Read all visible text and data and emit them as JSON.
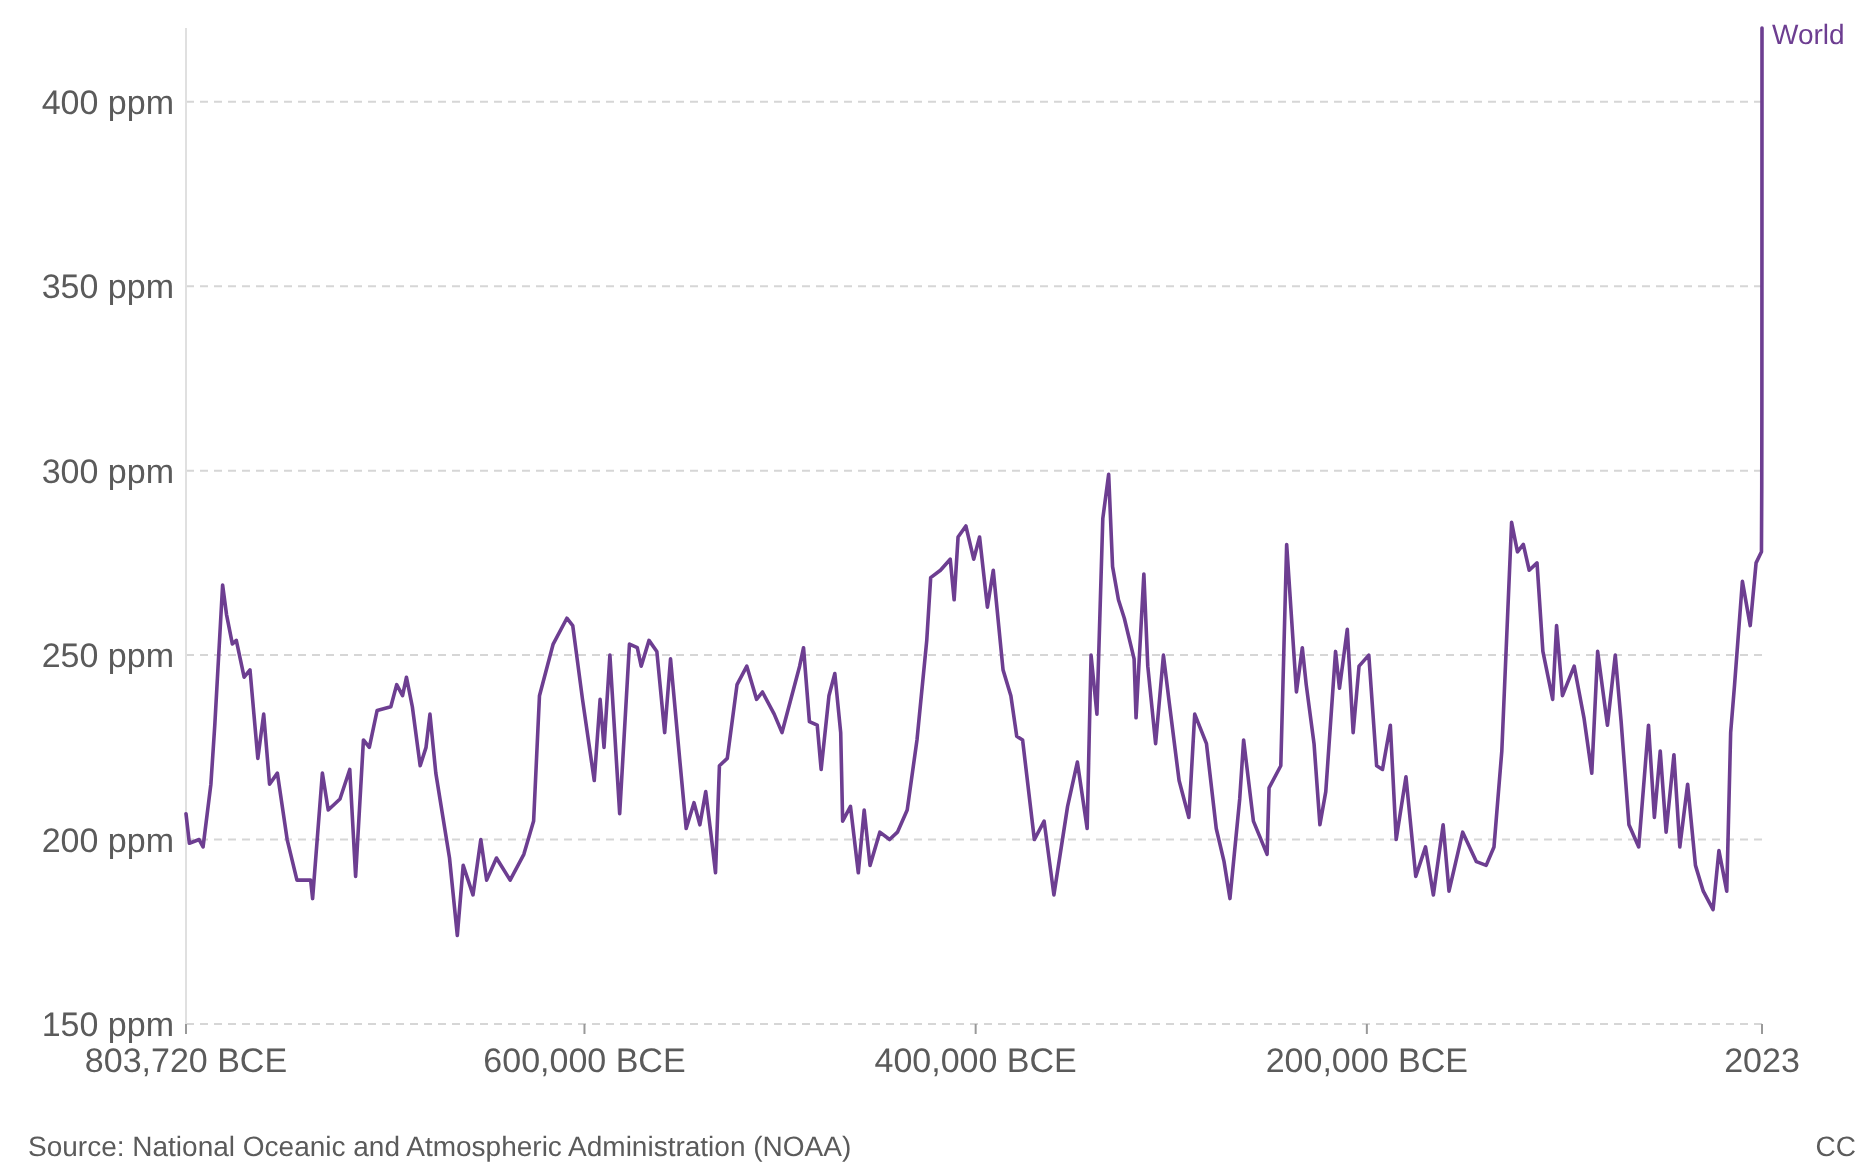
{
  "chart_data": {
    "type": "line",
    "xlim": [
      -803720,
      2023
    ],
    "ylim": [
      150,
      420
    ],
    "xticks": [
      {
        "value": -803720,
        "label": "803,720 BCE"
      },
      {
        "value": -600000,
        "label": "600,000 BCE"
      },
      {
        "value": -400000,
        "label": "400,000 BCE"
      },
      {
        "value": -200000,
        "label": "200,000 BCE"
      },
      {
        "value": 2023,
        "label": "2023"
      }
    ],
    "yticks": [
      {
        "value": 150,
        "label": "150 ppm"
      },
      {
        "value": 200,
        "label": "200 ppm"
      },
      {
        "value": 250,
        "label": "250 ppm"
      },
      {
        "value": 300,
        "label": "300 ppm"
      },
      {
        "value": 350,
        "label": "350 ppm"
      },
      {
        "value": 400,
        "label": "400 ppm"
      }
    ],
    "grid": "y",
    "line_style": "solid",
    "marker": "none",
    "annotations": [
      "Source: National Oceanic and Atmospheric Administration (NOAA)",
      "CC"
    ],
    "series": [
      {
        "name": "World",
        "color": "#6d3e91",
        "x": [
          -803720,
          -802000,
          -797000,
          -795000,
          -791000,
          -789000,
          -785000,
          -783000,
          -780000,
          -778000,
          -774000,
          -771000,
          -769000,
          -767000,
          -764000,
          -761000,
          -757000,
          -752000,
          -747000,
          -740000,
          -739000,
          -734000,
          -731000,
          -725000,
          -720000,
          -717000,
          -713000,
          -710000,
          -706000,
          -699000,
          -696000,
          -693000,
          -691000,
          -688000,
          -684000,
          -681000,
          -679000,
          -676000,
          -669000,
          -665000,
          -662000,
          -657000,
          -653000,
          -650000,
          -645000,
          -638000,
          -631000,
          -626000,
          -623000,
          -616000,
          -609000,
          -606000,
          -601000,
          -595000,
          -592000,
          -590000,
          -587000,
          -582000,
          -577000,
          -573000,
          -571000,
          -567000,
          -563000,
          -559000,
          -556000,
          -551000,
          -548000,
          -544000,
          -541000,
          -538000,
          -535000,
          -533000,
          -531000,
          -527000,
          -522000,
          -517000,
          -512000,
          -509000,
          -503000,
          -499000,
          -495000,
          -490000,
          -488000,
          -485000,
          -481000,
          -479000,
          -475000,
          -472000,
          -469000,
          -468000,
          -464000,
          -460000,
          -457000,
          -454000,
          -449000,
          -444000,
          -440000,
          -435000,
          -430000,
          -425000,
          -423000,
          -418000,
          -413000,
          -411000,
          -409000,
          -405000,
          -401000,
          -398000,
          -394000,
          -391000,
          -386000,
          -382000,
          -379000,
          -376000,
          -370000,
          -365000,
          -360000,
          -353000,
          -348000,
          -343000,
          -341000,
          -338000,
          -335000,
          -332000,
          -330000,
          -327000,
          -324000,
          -319000,
          -318000,
          -314000,
          -312000,
          -308000,
          -304000,
          -301000,
          -296000,
          -291000,
          -288000,
          -282000,
          -277000,
          -273000,
          -270000,
          -265000,
          -263000,
          -258000,
          -251000,
          -250000,
          -244000,
          -241000,
          -236000,
          -233000,
          -231000,
          -227000,
          -224000,
          -221000,
          -216000,
          -214000,
          -210000,
          -207000,
          -204000,
          -199000,
          -195000,
          -192000,
          -188000,
          -185000,
          -180000,
          -175000,
          -170000,
          -166000,
          -161000,
          -158000,
          -151000,
          -144000,
          -139000,
          -135000,
          -131000,
          -126000,
          -123000,
          -120000,
          -117000,
          -113000,
          -110000,
          -105000,
          -103000,
          -100000,
          -94000,
          -89000,
          -85000,
          -82000,
          -77000,
          -73000,
          -70000,
          -66000,
          -61000,
          -56000,
          -53000,
          -50000,
          -47000,
          -43000,
          -40000,
          -36000,
          -32000,
          -28000,
          -23000,
          -20000,
          -16000,
          -14000,
          -12000,
          -8000,
          -4000,
          -1000,
          1750,
          1900,
          1960,
          2000,
          2023
        ],
        "values": [
          207,
          199,
          200,
          198,
          215,
          231,
          269,
          261,
          253,
          254,
          244,
          246,
          234,
          222,
          234,
          215,
          218,
          200,
          189,
          189,
          184,
          218,
          208,
          211,
          219,
          190,
          227,
          225,
          235,
          236,
          242,
          239,
          244,
          236,
          220,
          225,
          234,
          218,
          195,
          174,
          193,
          185,
          200,
          189,
          195,
          189,
          196,
          205,
          239,
          253,
          260,
          258,
          238,
          216,
          238,
          225,
          250,
          207,
          253,
          252,
          247,
          254,
          251,
          229,
          249,
          220,
          203,
          210,
          204,
          213,
          200,
          191,
          220,
          222,
          242,
          247,
          238,
          240,
          234,
          229,
          237,
          247,
          252,
          232,
          231,
          219,
          239,
          245,
          229,
          205,
          209,
          191,
          208,
          193,
          202,
          200,
          202,
          208,
          227,
          254,
          271,
          273,
          276,
          265,
          282,
          285,
          276,
          282,
          263,
          273,
          246,
          239,
          228,
          227,
          200,
          205,
          185,
          209,
          221,
          203,
          250,
          234,
          287,
          299,
          274,
          265,
          260,
          249,
          233,
          272,
          247,
          226,
          250,
          237,
          216,
          206,
          234,
          226,
          203,
          194,
          184,
          211,
          227,
          205,
          196,
          214,
          220,
          280,
          240,
          252,
          242,
          226,
          204,
          213,
          251,
          241,
          257,
          229,
          247,
          250,
          220,
          219,
          231,
          200,
          217,
          190,
          198,
          185,
          204,
          186,
          202,
          194,
          193,
          198,
          224,
          286,
          278,
          280,
          273,
          275,
          251,
          238,
          258,
          239,
          247,
          233,
          218,
          251,
          231,
          250,
          232,
          204,
          198,
          231,
          206,
          224,
          202,
          223,
          198,
          215,
          193,
          186,
          181,
          197,
          186,
          229,
          242,
          270,
          258,
          275,
          278,
          296,
          317,
          369,
          420
        ]
      }
    ]
  }
}
